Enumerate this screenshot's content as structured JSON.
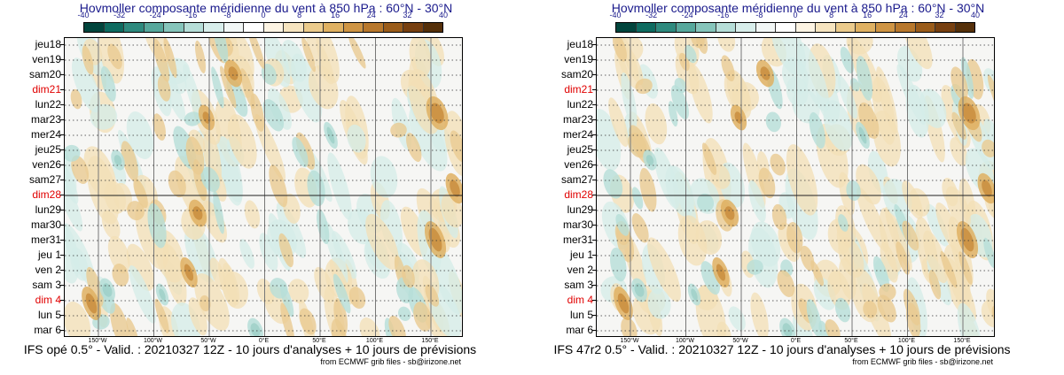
{
  "chart_data": [
    {
      "type": "heatmap",
      "title": "Hovmoller composante méridienne du vent à 850 hPa : 60°N - 30°N",
      "footer": "IFS opé 0.5° - Valid. : 20210327 12Z - 10 jours d'analyses + 10 jours de prévisions",
      "credit": "from ECMWF grib files - sb@irizone.net",
      "colorbar": {
        "ticks": [
          "-40",
          "-32",
          "-24",
          "-16",
          "-8",
          "0",
          "8",
          "16",
          "24",
          "32",
          "40"
        ],
        "colors": [
          "#01453d",
          "#0e6b60",
          "#2e8a7e",
          "#57a89c",
          "#86c5bb",
          "#b6ded8",
          "#d8eeeb",
          "#f2f7f6",
          "#ffffff",
          "#fdf4e3",
          "#f6e4bf",
          "#ebcb8c",
          "#dfb162",
          "#cf9544",
          "#b8782c",
          "#9a5c1a",
          "#774010",
          "#55300a"
        ]
      },
      "rows": [
        "jeu18",
        "ven19",
        "sam20",
        "dim21",
        "lun22",
        "mar23",
        "mer24",
        "jeu25",
        "ven26",
        "sam27",
        "dim28",
        "lun29",
        "mar30",
        "mer31",
        "jeu 1",
        "ven 2",
        "sam 3",
        "dim 4",
        "lun 5",
        "mar 6"
      ],
      "red_rows": [
        "dim21",
        "dim28",
        "dim 4"
      ],
      "x_ticks": [
        "150°W",
        "100°W",
        "50°W",
        "0°E",
        "50°E",
        "100°E",
        "150°E"
      ],
      "analysis_forecast_boundary": "dim28"
    },
    {
      "type": "heatmap",
      "title": "Hovmoller composante méridienne du vent à 850 hPa : 60°N - 30°N",
      "footer": "IFS 47r2 0.5° - Valid. : 20210327 12Z - 10 jours d'analyses + 10 jours de prévisions",
      "credit": "from ECMWF grib files - sb@irizone.net",
      "colorbar": {
        "ticks": [
          "-40",
          "-32",
          "-24",
          "-16",
          "-8",
          "0",
          "8",
          "16",
          "24",
          "32",
          "40"
        ],
        "colors": [
          "#01453d",
          "#0e6b60",
          "#2e8a7e",
          "#57a89c",
          "#86c5bb",
          "#b6ded8",
          "#d8eeeb",
          "#f2f7f6",
          "#ffffff",
          "#fdf4e3",
          "#f6e4bf",
          "#ebcb8c",
          "#dfb162",
          "#cf9544",
          "#b8782c",
          "#9a5c1a",
          "#774010",
          "#55300a"
        ]
      },
      "rows": [
        "jeu18",
        "ven19",
        "sam20",
        "dim21",
        "lun22",
        "mar23",
        "mer24",
        "jeu25",
        "ven26",
        "sam27",
        "dim28",
        "lun29",
        "mar30",
        "mer31",
        "jeu 1",
        "ven 2",
        "sam 3",
        "dim 4",
        "lun 5",
        "mar 6"
      ],
      "red_rows": [
        "dim21",
        "dim28",
        "dim 4"
      ],
      "x_ticks": [
        "150°W",
        "100°W",
        "50°W",
        "0°E",
        "50°E",
        "100°E",
        "150°E"
      ],
      "analysis_forecast_boundary": "dim28"
    }
  ]
}
